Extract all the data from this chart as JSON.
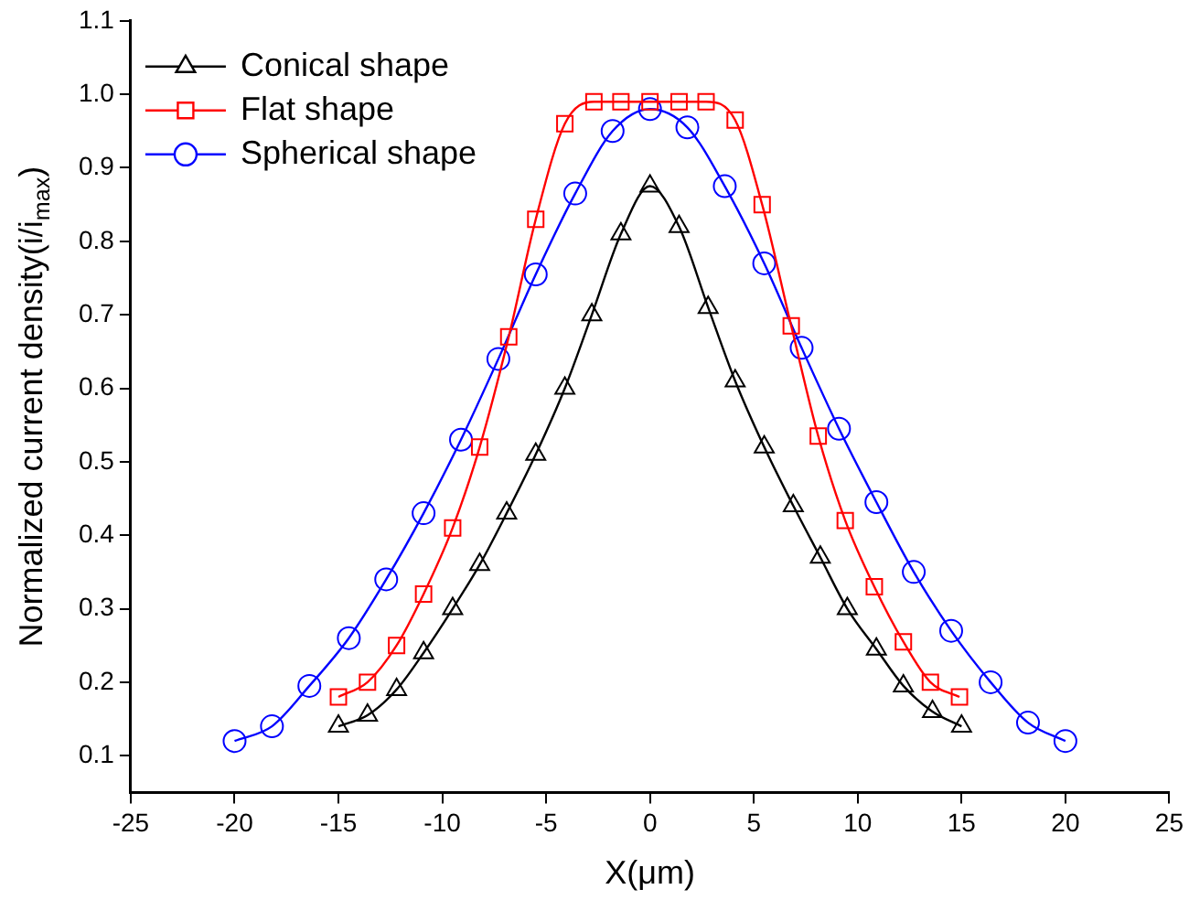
{
  "chart_data": {
    "type": "line",
    "xlabel": "X(μm)",
    "ylabel": "Normalized current density(i/i$_{max}$)",
    "xlim": [
      -25,
      25
    ],
    "xticks": [
      -25,
      -20,
      -15,
      -10,
      -5,
      0,
      5,
      10,
      15,
      20,
      25
    ],
    "ylim": [
      0.05,
      1.1
    ],
    "yticks": [
      0.1,
      0.2,
      0.3,
      0.4,
      0.5,
      0.6,
      0.7,
      0.8,
      0.9,
      {
        "value": 1,
        "label": "1.0"
      },
      1.1
    ],
    "grid": false,
    "legend": "top left",
    "series": [
      {
        "name": "Conical shape",
        "color": "#000000",
        "marker": "triangle",
        "x": [
          -15,
          -13.6,
          -12.2,
          -10.9,
          -9.5,
          -8.2,
          -6.9,
          -5.5,
          -4.1,
          -2.8,
          -1.4,
          0,
          1.4,
          2.8,
          4.1,
          5.5,
          6.9,
          8.2,
          9.5,
          10.9,
          12.2,
          13.6,
          15
        ],
        "values": [
          0.14,
          0.155,
          0.19,
          0.24,
          0.3,
          0.36,
          0.43,
          0.51,
          0.6,
          0.7,
          0.81,
          0.875,
          0.82,
          0.71,
          0.61,
          0.52,
          0.44,
          0.37,
          0.3,
          0.245,
          0.195,
          0.16,
          0.14
        ]
      },
      {
        "name": "Flat shape",
        "color": "#ff0000",
        "marker": "square",
        "x": [
          -15,
          -13.6,
          -12.2,
          -10.9,
          -9.5,
          -8.2,
          -6.8,
          -5.5,
          -4.1,
          -2.7,
          -1.4,
          0,
          1.4,
          2.7,
          4.1,
          5.4,
          6.8,
          8.1,
          9.4,
          10.8,
          12.2,
          13.5,
          14.9
        ],
        "values": [
          0.18,
          0.2,
          0.25,
          0.32,
          0.41,
          0.52,
          0.67,
          0.83,
          0.96,
          0.99,
          0.99,
          0.99,
          0.99,
          0.99,
          0.965,
          0.85,
          0.685,
          0.535,
          0.42,
          0.33,
          0.255,
          0.2,
          0.18
        ]
      },
      {
        "name": "Spherical shape",
        "color": "#0000ff",
        "marker": "circle",
        "x": [
          -20,
          -18.2,
          -16.4,
          -14.5,
          -12.7,
          -10.9,
          -9.1,
          -7.3,
          -5.5,
          -3.6,
          -1.8,
          0,
          1.8,
          3.6,
          5.5,
          7.3,
          9.1,
          10.9,
          12.7,
          14.5,
          16.4,
          18.2,
          20
        ],
        "values": [
          0.12,
          0.14,
          0.195,
          0.26,
          0.34,
          0.43,
          0.53,
          0.64,
          0.755,
          0.865,
          0.95,
          0.98,
          0.955,
          0.875,
          0.77,
          0.655,
          0.545,
          0.445,
          0.35,
          0.27,
          0.2,
          0.145,
          0.12
        ]
      }
    ]
  }
}
